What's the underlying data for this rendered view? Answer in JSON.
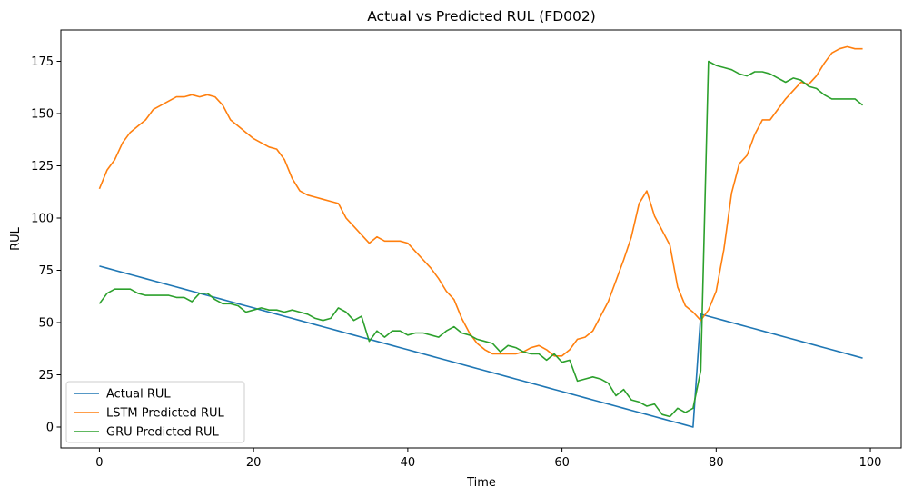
{
  "chart_data": {
    "type": "line",
    "title": "Actual vs Predicted RUL (FD002)",
    "xlabel": "Time",
    "ylabel": "RUL",
    "xlim": [
      -5,
      104
    ],
    "ylim": [
      -10,
      190
    ],
    "xticks": [
      0,
      20,
      40,
      60,
      80,
      100
    ],
    "yticks": [
      0,
      25,
      50,
      75,
      100,
      125,
      150,
      175
    ],
    "grid": false,
    "legend_position": "lower-left",
    "x": [
      0,
      1,
      2,
      3,
      4,
      5,
      6,
      7,
      8,
      9,
      10,
      11,
      12,
      13,
      14,
      15,
      16,
      17,
      18,
      19,
      20,
      21,
      22,
      23,
      24,
      25,
      26,
      27,
      28,
      29,
      30,
      31,
      32,
      33,
      34,
      35,
      36,
      37,
      38,
      39,
      40,
      41,
      42,
      43,
      44,
      45,
      46,
      47,
      48,
      49,
      50,
      51,
      52,
      53,
      54,
      55,
      56,
      57,
      58,
      59,
      60,
      61,
      62,
      63,
      64,
      65,
      66,
      67,
      68,
      69,
      70,
      71,
      72,
      73,
      74,
      75,
      76,
      77,
      78,
      79,
      80,
      81,
      82,
      83,
      84,
      85,
      86,
      87,
      88,
      89,
      90,
      91,
      92,
      93,
      94,
      95,
      96,
      97,
      98,
      99
    ],
    "series": [
      {
        "name": "Actual RUL",
        "color": "#1f77b4",
        "values": [
          77,
          76,
          75,
          74,
          73,
          72,
          71,
          70,
          69,
          68,
          67,
          66,
          65,
          64,
          63,
          62,
          61,
          60,
          59,
          58,
          57,
          56,
          55,
          54,
          53,
          52,
          51,
          50,
          49,
          48,
          47,
          46,
          45,
          44,
          43,
          42,
          41,
          40,
          39,
          38,
          37,
          36,
          35,
          34,
          33,
          32,
          31,
          30,
          29,
          28,
          27,
          26,
          25,
          24,
          23,
          22,
          21,
          20,
          19,
          18,
          17,
          16,
          15,
          14,
          13,
          12,
          11,
          10,
          9,
          8,
          7,
          6,
          5,
          4,
          3,
          2,
          1,
          0,
          54,
          53,
          52,
          51,
          50,
          49,
          48,
          47,
          46,
          45,
          44,
          43,
          42,
          41,
          40,
          39,
          38,
          37,
          36,
          35,
          34,
          33
        ]
      },
      {
        "name": "LSTM Predicted RUL",
        "color": "#ff7f0e",
        "values": [
          114,
          123,
          128,
          136,
          141,
          144,
          147,
          152,
          154,
          156,
          158,
          158,
          159,
          158,
          159,
          158,
          154,
          147,
          144,
          141,
          138,
          136,
          134,
          133,
          128,
          119,
          113,
          111,
          110,
          109,
          108,
          107,
          100,
          96,
          92,
          88,
          91,
          89,
          89,
          89,
          88,
          84,
          80,
          76,
          71,
          65,
          61,
          52,
          45,
          40,
          37,
          35,
          35,
          35,
          35,
          36,
          38,
          39,
          37,
          34,
          34,
          37,
          42,
          43,
          46,
          53,
          60,
          70,
          80,
          91,
          107,
          113,
          101,
          94,
          87,
          67,
          58,
          55,
          51,
          56,
          65,
          85,
          112,
          126,
          130,
          140,
          147,
          147,
          152,
          157,
          161,
          165,
          164,
          168,
          174,
          179,
          181,
          182,
          181,
          181
        ]
      },
      {
        "name": "GRU Predicted RUL",
        "color": "#2ca02c",
        "values": [
          59,
          64,
          66,
          66,
          66,
          64,
          63,
          63,
          63,
          63,
          62,
          62,
          60,
          64,
          64,
          61,
          59,
          59,
          58,
          55,
          56,
          57,
          56,
          56,
          55,
          56,
          55,
          54,
          52,
          51,
          52,
          57,
          55,
          51,
          53,
          41,
          46,
          43,
          46,
          46,
          44,
          45,
          45,
          44,
          43,
          46,
          48,
          45,
          44,
          42,
          41,
          40,
          36,
          39,
          38,
          36,
          35,
          35,
          32,
          35,
          31,
          32,
          22,
          23,
          24,
          23,
          21,
          15,
          18,
          13,
          12,
          10,
          11,
          6,
          5,
          9,
          7,
          9,
          27,
          175,
          173,
          172,
          171,
          169,
          168,
          170,
          170,
          169,
          167,
          165,
          167,
          166,
          163,
          162,
          159,
          157,
          157,
          157,
          157,
          154
        ]
      }
    ]
  }
}
